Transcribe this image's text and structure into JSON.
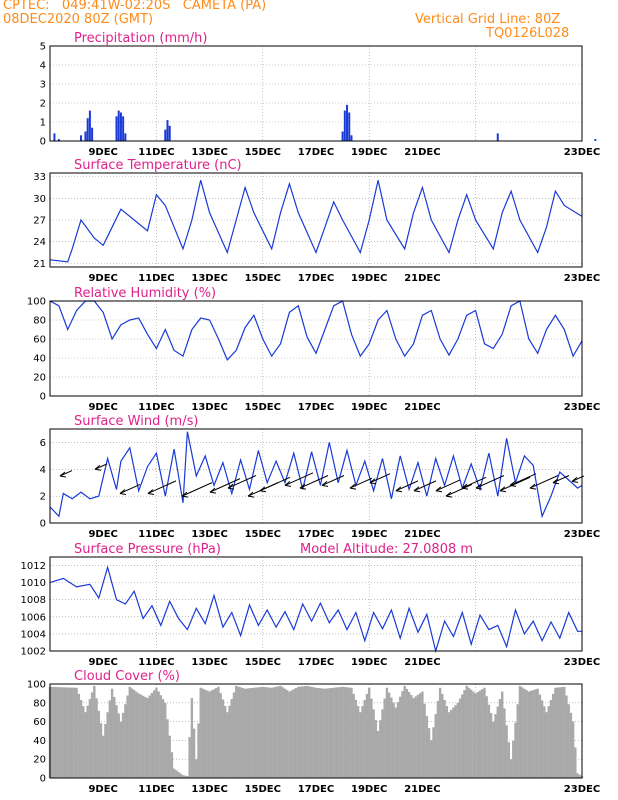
{
  "header": {
    "line1_left": "CPTEC:   049:41W-02:20S   CAMETA (PA)",
    "line2_left": "08DEC2020 80Z (GMT)",
    "line1_right": "Vertical Grid Line: 80Z",
    "line2_right": "TQ0126L028"
  },
  "x_labels": [
    "9DEC",
    "11DEC",
    "13DEC",
    "15DEC",
    "17DEC",
    "19DEC",
    "21DEC",
    "23DEC"
  ],
  "colors": {
    "header": "#ff8c1a",
    "title": "#e0218a",
    "line": "#1a3ad6",
    "cloud": "#a9a9a9",
    "grid": "#999999"
  },
  "chart_data": [
    {
      "type": "bar",
      "title": "Precipitation (mm/h)",
      "ylim": [
        0,
        5
      ],
      "yticks": [
        0,
        1,
        2,
        3,
        4,
        5
      ],
      "xlim": [
        0,
        120
      ],
      "x": [
        1,
        2,
        7,
        8,
        8.5,
        9,
        9.5,
        15,
        15.5,
        16,
        16.5,
        17,
        26,
        26.5,
        27,
        66,
        66.5,
        67,
        67.5,
        68,
        101,
        123
      ],
      "values": [
        0.4,
        0.1,
        0.3,
        0.5,
        1.2,
        1.6,
        0.7,
        1.3,
        1.6,
        1.5,
        1.3,
        0.4,
        0.6,
        1.1,
        0.8,
        0.5,
        1.6,
        1.9,
        1.5,
        0.3,
        0.4,
        0.1
      ]
    },
    {
      "type": "line",
      "title": "Surface Temperature (nC)",
      "ylim": [
        20.5,
        33.5
      ],
      "yticks": [
        21,
        24,
        27,
        30,
        33
      ],
      "xlim": [
        0,
        120
      ],
      "x": [
        0,
        4,
        5,
        7,
        10,
        12,
        14,
        16,
        19,
        22,
        24,
        26,
        30,
        32,
        34,
        36,
        40,
        42,
        44,
        46,
        50,
        52,
        54,
        56,
        60,
        62,
        64,
        66,
        70,
        72,
        74,
        76,
        80,
        82,
        84,
        86,
        90,
        92,
        94,
        96,
        100,
        102,
        104,
        106,
        110,
        112,
        114,
        116,
        120
      ],
      "values": [
        21.5,
        21.2,
        23,
        27,
        24.5,
        23.5,
        26,
        28.5,
        27,
        25.5,
        30.5,
        29,
        23,
        27,
        32.5,
        28,
        22.5,
        27,
        31.5,
        28,
        23,
        28,
        32,
        28,
        22.5,
        26,
        29.5,
        27,
        22.5,
        27,
        32.5,
        27,
        23,
        28,
        31.5,
        27,
        22.5,
        27,
        30.5,
        27,
        23,
        28,
        31,
        27,
        22.5,
        26,
        31,
        29,
        27.5
      ]
    },
    {
      "type": "line",
      "title": "Relative Humidity (%)",
      "ylim": [
        0,
        100
      ],
      "yticks": [
        0,
        20,
        40,
        60,
        80,
        100
      ],
      "xlim": [
        0,
        120
      ],
      "x": [
        0,
        2,
        4,
        6,
        8,
        10,
        12,
        14,
        16,
        18,
        20,
        22,
        24,
        26,
        28,
        30,
        32,
        34,
        36,
        38,
        40,
        42,
        44,
        46,
        48,
        50,
        52,
        54,
        56,
        58,
        60,
        62,
        64,
        66,
        68,
        70,
        72,
        74,
        76,
        78,
        80,
        82,
        84,
        86,
        88,
        90,
        92,
        94,
        96,
        98,
        100,
        102,
        104,
        106,
        108,
        110,
        112,
        114,
        116,
        118,
        120
      ],
      "values": [
        100,
        95,
        70,
        90,
        100,
        100,
        88,
        60,
        75,
        80,
        82,
        65,
        50,
        70,
        48,
        42,
        70,
        82,
        80,
        60,
        38,
        48,
        72,
        85,
        60,
        42,
        55,
        88,
        95,
        62,
        45,
        70,
        95,
        100,
        65,
        42,
        55,
        80,
        90,
        60,
        42,
        55,
        85,
        90,
        60,
        43,
        60,
        85,
        90,
        55,
        50,
        65,
        95,
        100,
        60,
        45,
        70,
        85,
        70,
        42,
        58
      ]
    },
    {
      "type": "line",
      "title": "Surface Wind (m/s)",
      "ylim": [
        0,
        7
      ],
      "yticks": [
        0,
        2,
        4,
        6
      ],
      "xlim": [
        0,
        120
      ],
      "x": [
        0,
        2,
        3,
        5,
        7,
        9,
        11,
        13,
        15,
        16,
        18,
        20,
        22,
        24,
        26,
        28,
        30,
        31,
        33,
        35,
        37,
        39,
        41,
        43,
        45,
        47,
        49,
        51,
        53,
        55,
        57,
        59,
        61,
        63,
        65,
        67,
        69,
        71,
        73,
        75,
        77,
        79,
        81,
        83,
        85,
        87,
        89,
        91,
        93,
        95,
        97,
        99,
        101,
        103,
        105,
        107,
        109,
        111,
        113,
        115,
        117,
        119,
        120
      ],
      "values": [
        1.2,
        0.5,
        2.2,
        1.8,
        2.3,
        1.8,
        2.0,
        4.8,
        2.5,
        4.6,
        5.6,
        2.4,
        4.2,
        5.2,
        2.0,
        5.5,
        1.5,
        6.8,
        3.5,
        5.0,
        2.8,
        4.5,
        2.2,
        4.7,
        2.5,
        5.4,
        3.0,
        4.6,
        3.0,
        5.2,
        2.5,
        5.3,
        2.8,
        6.0,
        3.0,
        5.4,
        2.8,
        4.6,
        2.4,
        4.8,
        1.8,
        5.0,
        2.5,
        4.5,
        2.0,
        4.8,
        2.8,
        5.0,
        2.6,
        4.4,
        2.5,
        5.2,
        2.0,
        6.3,
        3.0,
        5.0,
        4.3,
        0.5,
        2.0,
        3.8,
        3.2,
        2.6,
        2.8
      ]
    },
    {
      "type": "line",
      "title": "Surface Pressure (hPa)",
      "annotation": "Model Altitude: 27.0808 m",
      "ylim": [
        1002,
        1013
      ],
      "yticks": [
        1002,
        1004,
        1006,
        1008,
        1010,
        1012
      ],
      "xlim": [
        0,
        120
      ],
      "x": [
        0,
        3,
        6,
        9,
        11,
        13,
        15,
        17,
        19,
        21,
        23,
        25,
        27,
        29,
        31,
        33,
        35,
        37,
        39,
        41,
        43,
        45,
        47,
        49,
        51,
        53,
        55,
        57,
        59,
        61,
        63,
        65,
        67,
        69,
        71,
        73,
        75,
        77,
        79,
        81,
        83,
        85,
        87,
        89,
        91,
        93,
        95,
        97,
        99,
        101,
        103,
        105,
        107,
        109,
        111,
        113,
        115,
        117,
        119,
        120
      ],
      "values": [
        1010,
        1010.5,
        1009.5,
        1009.8,
        1008.2,
        1011.8,
        1008,
        1007.5,
        1009,
        1005.8,
        1007.3,
        1005,
        1007.8,
        1005.8,
        1004.5,
        1007,
        1005.2,
        1008.5,
        1004.8,
        1006.5,
        1003.8,
        1007.4,
        1005,
        1006.8,
        1004.8,
        1006.6,
        1004.5,
        1007.5,
        1005.5,
        1007.6,
        1005.3,
        1006.8,
        1004.5,
        1006.5,
        1003.2,
        1006.5,
        1004.6,
        1006.8,
        1003.5,
        1007,
        1004.2,
        1006.3,
        1002,
        1005.5,
        1003.7,
        1006.5,
        1002.8,
        1006.2,
        1004.5,
        1005,
        1002.5,
        1006.8,
        1004,
        1005.5,
        1003.2,
        1005.4,
        1003.5,
        1006.5,
        1004.3,
        1004.3
      ]
    },
    {
      "type": "area",
      "title": "Cloud Cover (%)",
      "ylim": [
        0,
        100
      ],
      "yticks": [
        0,
        20,
        40,
        60,
        80,
        100
      ],
      "xlim": [
        0,
        120
      ],
      "x": [
        0,
        6,
        8,
        10,
        12,
        14,
        16,
        18,
        20,
        22,
        24,
        26,
        28,
        30,
        31,
        32,
        33,
        34,
        36,
        38,
        40,
        42,
        44,
        46,
        48,
        50,
        52,
        54,
        56,
        58,
        60,
        62,
        64,
        66,
        68,
        70,
        72,
        74,
        76,
        78,
        80,
        82,
        84,
        86,
        88,
        90,
        92,
        94,
        96,
        98,
        100,
        102,
        104,
        106,
        108,
        110,
        112,
        114,
        116,
        118,
        119,
        120
      ],
      "values": [
        97,
        96,
        70,
        98,
        45,
        95,
        60,
        97,
        90,
        85,
        96,
        80,
        10,
        3,
        2,
        85,
        20,
        96,
        92,
        97,
        70,
        98,
        95,
        96,
        97,
        96,
        98,
        92,
        97,
        98,
        96,
        95,
        96,
        97,
        96,
        70,
        96,
        50,
        96,
        75,
        98,
        85,
        92,
        40,
        96,
        70,
        80,
        98,
        90,
        96,
        60,
        92,
        20,
        98,
        92,
        95,
        70,
        96,
        97,
        60,
        5,
        2
      ]
    }
  ]
}
